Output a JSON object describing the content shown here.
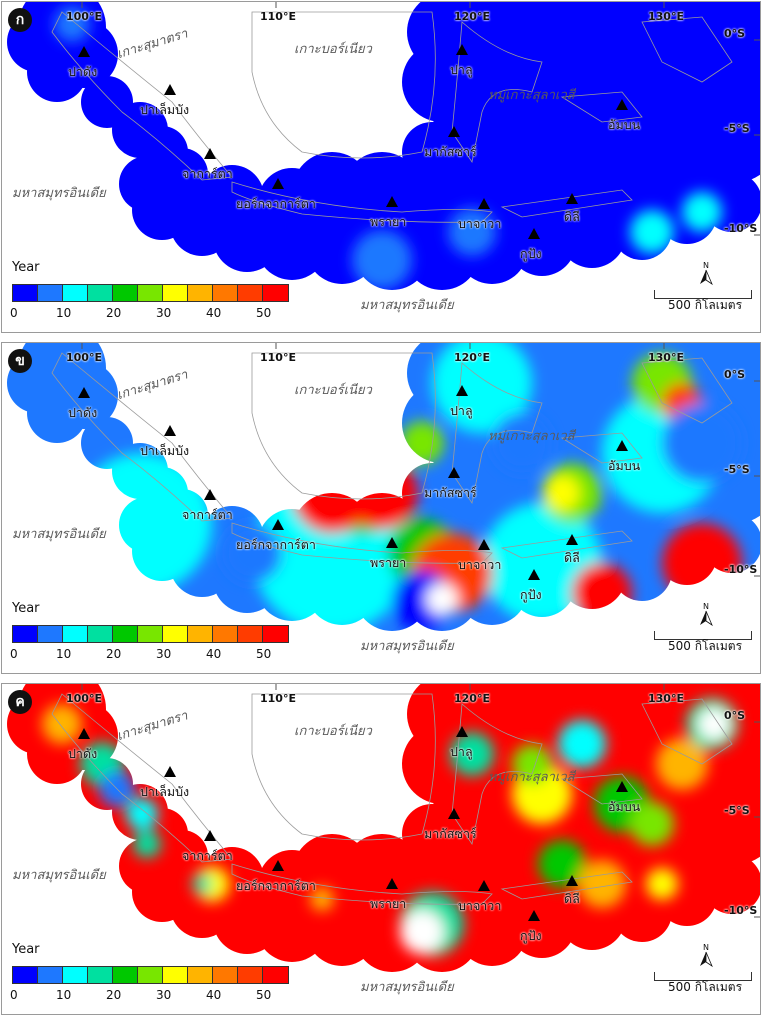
{
  "panels": [
    {
      "letter": "ก",
      "variant": 0
    },
    {
      "letter": "ข",
      "variant": 1
    },
    {
      "letter": "ค",
      "variant": 2
    }
  ],
  "stations": [
    {
      "name": "ปาดัง"
    },
    {
      "name": "ปาเล็มบัง"
    },
    {
      "name": "จาการ์ตา"
    },
    {
      "name": "ยอร์กจาการ์ตา"
    },
    {
      "name": "พรายา"
    },
    {
      "name": "บาจาวา"
    },
    {
      "name": "มากัสซาร์"
    },
    {
      "name": "ปาลู"
    },
    {
      "name": "อัมบน"
    },
    {
      "name": "ดิลี"
    },
    {
      "name": "กูปัง"
    }
  ],
  "regions": {
    "borneo": "เกาะบอร์เนียว",
    "sumatra": "เกาะสุมาตรา",
    "sulawesi": "หมู่เกาะสุลาเวสี",
    "indian_ocean_west": "มหาสมุทรอินเดีย",
    "indian_ocean_south": "มหาสมุทรอินเดีย"
  },
  "coords": {
    "lon100": "100°E",
    "lon110": "110°E",
    "lon120": "120°E",
    "lon130": "130°E",
    "lat0": "0°S",
    "lat5": "-5°S",
    "lat10": "-10°S"
  },
  "legend": {
    "title": "Year",
    "ticks": [
      "0",
      "10",
      "20",
      "30",
      "40",
      "50"
    ],
    "colors": [
      "#0000ff",
      "#1e78ff",
      "#00ffff",
      "#00e0a0",
      "#00c800",
      "#78e600",
      "#ffff00",
      "#ffb400",
      "#ff7800",
      "#ff3c00",
      "#ff0000"
    ]
  },
  "north": "N",
  "scale_label": "500 กิโลเมตร"
}
